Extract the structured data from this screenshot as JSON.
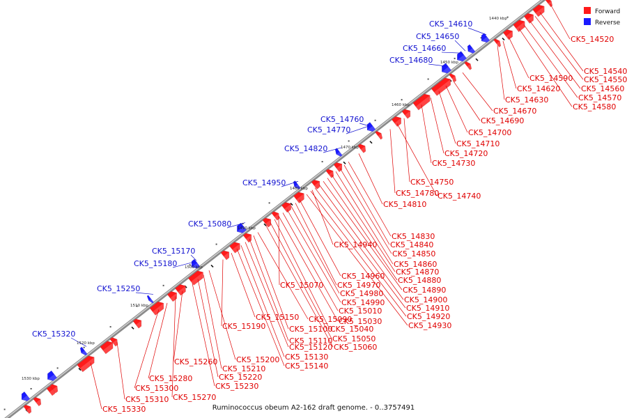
{
  "caption": "Ruminococcus obeum A2-162 draft genome. - 0..3757491",
  "legend": [
    {
      "label": "Forward",
      "color": "#ff1a1a"
    },
    {
      "label": "Reverse",
      "color": "#1a1aff"
    }
  ],
  "colors": {
    "forward": "#ff1a1a",
    "reverse": "#1a1aff",
    "forward_text": "#e00000",
    "reverse_text": "#1010d0",
    "backbone": "#555555"
  },
  "kbp_labels": [
    "1440 kbp",
    "1450 kbp",
    "1460 kbp",
    "1470 kbp",
    "1480 kbp",
    "1490 kbp",
    "1500 kbp",
    "1510 kbp",
    "1520 kbp",
    "1530 kbp"
  ],
  "forward_genes": [
    "CK5_14520",
    "CK5_14540",
    "CK5_14550",
    "CK5_14560",
    "CK5_14570",
    "CK5_14580",
    "CK5_14590",
    "CK5_14620",
    "CK5_14630",
    "CK5_14670",
    "CK5_14690",
    "CK5_14700",
    "CK5_14710",
    "CK5_14720",
    "CK5_14730",
    "CK5_14750",
    "CK5_14740",
    "CK5_14780",
    "CK5_14810",
    "CK5_14830",
    "CK5_14840",
    "CK5_14850",
    "CK5_14860",
    "CK5_14870",
    "CK5_14880",
    "CK5_14890",
    "CK5_14900",
    "CK5_14910",
    "CK5_14920",
    "CK5_14930",
    "CK5_14940",
    "CK5_14960",
    "CK5_14970",
    "CK5_14980",
    "CK5_14990",
    "CK5_15010",
    "CK5_15030",
    "CK5_15040",
    "CK5_15050",
    "CK5_15060",
    "CK5_15070",
    "CK5_15090",
    "CK5_15100",
    "CK5_15110",
    "CK5_15120",
    "CK5_15130",
    "CK5_15140",
    "CK5_15150",
    "CK5_15190",
    "CK5_15200",
    "CK5_15210",
    "CK5_15220",
    "CK5_15230",
    "CK5_15260",
    "CK5_15270",
    "CK5_15280",
    "CK5_15300",
    "CK5_15310",
    "CK5_15330"
  ],
  "reverse_genes": [
    "CK5_14610",
    "CK5_14650",
    "CK5_14660",
    "CK5_14680",
    "CK5_14760",
    "CK5_14770",
    "CK5_14820",
    "CK5_14950",
    "CK5_15080",
    "CK5_15170",
    "CK5_15180",
    "CK5_15250",
    "CK5_15320"
  ]
}
